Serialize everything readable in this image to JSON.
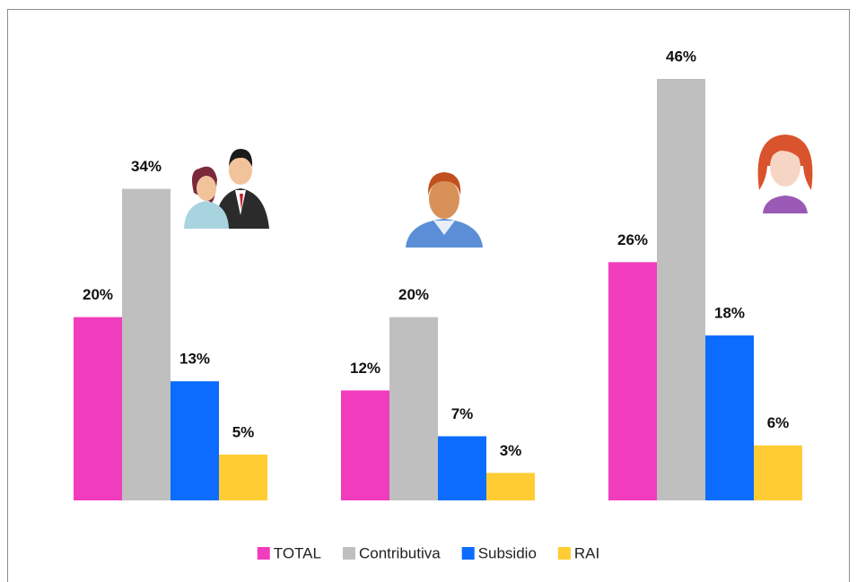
{
  "chart_data": {
    "type": "bar",
    "categories": [
      null,
      null,
      null
    ],
    "series": [
      {
        "name": "TOTAL",
        "color": "#f23cbe",
        "values": [
          20,
          12,
          26
        ],
        "value_labels": [
          "20%",
          "12%",
          "26%"
        ]
      },
      {
        "name": "Contributiva",
        "color": "#bfbfbf",
        "values": [
          34,
          20,
          46
        ],
        "value_labels": [
          "34%",
          "20%",
          "46%"
        ]
      },
      {
        "name": "Subsidio",
        "color": "#0b6cff",
        "values": [
          13,
          7,
          18
        ],
        "value_labels": [
          "13%",
          "7%",
          "18%"
        ]
      },
      {
        "name": "RAI",
        "color": "#ffcd33",
        "values": [
          5,
          3,
          6
        ],
        "value_labels": [
          "5%",
          "3%",
          "6%"
        ]
      }
    ],
    "legend": "bottom"
  }
}
